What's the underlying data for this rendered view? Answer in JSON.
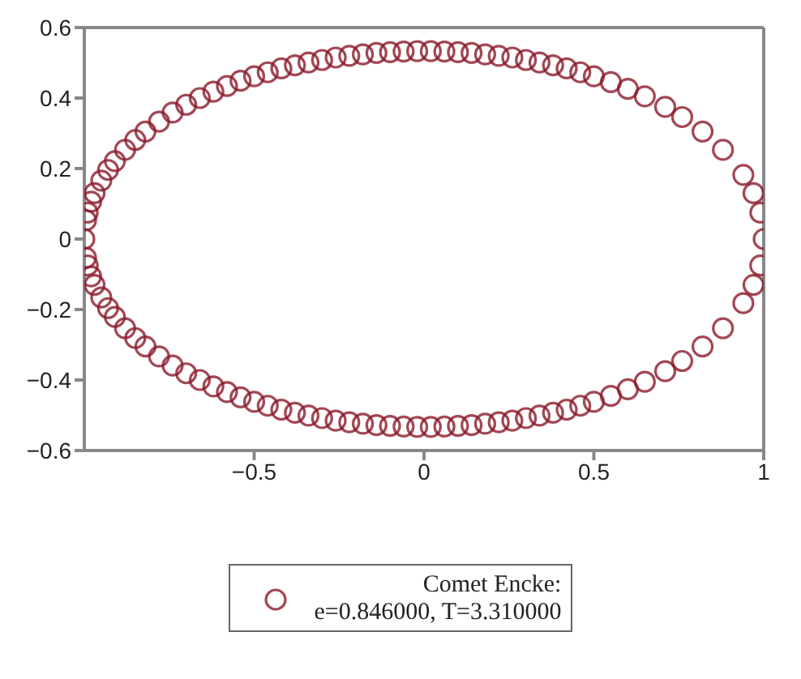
{
  "chart_data": {
    "type": "scatter",
    "x": [
      1,
      0.99,
      0.97,
      0.94,
      0.88,
      0.82,
      0.76,
      0.71,
      0.65,
      0.6,
      0.55,
      0.5,
      0.46,
      0.42,
      0.38,
      0.34,
      0.3,
      0.26,
      0.22,
      0.18,
      0.14,
      0.1,
      0.06,
      0.02,
      -0.02,
      -0.06,
      -0.1,
      -0.14,
      -0.18,
      -0.22,
      -0.26,
      -0.3,
      -0.34,
      -0.38,
      -0.42,
      -0.46,
      -0.5,
      -0.54,
      -0.58,
      -0.62,
      -0.66,
      -0.7,
      -0.74,
      -0.78,
      -0.82,
      -0.85,
      -0.88,
      -0.91,
      -0.93,
      -0.95,
      -0.97,
      -0.98,
      -0.99,
      -0.995,
      -1,
      -0.995,
      -0.99,
      -0.98,
      -0.97,
      -0.95,
      -0.93,
      -0.91,
      -0.88,
      -0.85,
      -0.82,
      -0.78,
      -0.74,
      -0.7,
      -0.66,
      -0.62,
      -0.58,
      -0.54,
      -0.5,
      -0.46,
      -0.42,
      -0.38,
      -0.34,
      -0.3,
      -0.26,
      -0.22,
      -0.18,
      -0.14,
      -0.1,
      -0.06,
      -0.02,
      0.02,
      0.06,
      0.1,
      0.14,
      0.18,
      0.22,
      0.26,
      0.3,
      0.34,
      0.38,
      0.42,
      0.46,
      0.5,
      0.55,
      0.6,
      0.65,
      0.71,
      0.76,
      0.82,
      0.88,
      0.94,
      0.97,
      0.99
    ],
    "series": [
      {
        "name": "Comet Encke:\ne=0.846000, T=3.310000",
        "color": "#8b1a2b",
        "values": [
          0,
          0.075,
          0.13,
          0.182,
          0.253,
          0.305,
          0.346,
          0.375,
          0.405,
          0.426,
          0.445,
          0.462,
          0.473,
          0.484,
          0.493,
          0.501,
          0.508,
          0.515,
          0.52,
          0.524,
          0.528,
          0.53,
          0.532,
          0.533,
          0.533,
          0.532,
          0.53,
          0.528,
          0.524,
          0.52,
          0.515,
          0.508,
          0.501,
          0.493,
          0.484,
          0.473,
          0.462,
          0.449,
          0.434,
          0.418,
          0.4,
          0.381,
          0.359,
          0.333,
          0.305,
          0.281,
          0.253,
          0.221,
          0.196,
          0.166,
          0.13,
          0.106,
          0.075,
          0.053,
          0,
          -0.053,
          -0.075,
          -0.106,
          -0.13,
          -0.166,
          -0.196,
          -0.221,
          -0.253,
          -0.281,
          -0.305,
          -0.333,
          -0.359,
          -0.381,
          -0.4,
          -0.418,
          -0.434,
          -0.449,
          -0.462,
          -0.473,
          -0.484,
          -0.493,
          -0.501,
          -0.508,
          -0.515,
          -0.52,
          -0.524,
          -0.528,
          -0.53,
          -0.532,
          -0.533,
          -0.533,
          -0.532,
          -0.53,
          -0.528,
          -0.524,
          -0.52,
          -0.515,
          -0.508,
          -0.501,
          -0.493,
          -0.484,
          -0.473,
          -0.462,
          -0.445,
          -0.426,
          -0.405,
          -0.375,
          -0.346,
          -0.305,
          -0.253,
          -0.182,
          -0.13,
          -0.075
        ]
      }
    ],
    "xlim": [
      -1,
      1
    ],
    "xticks": [
      -0.5,
      0,
      0.5,
      1
    ],
    "ylim": [
      -0.6,
      0.6
    ],
    "yticks": [
      -0.6,
      -0.4,
      -0.2,
      0,
      0.2,
      0.4,
      0.6
    ],
    "marker": "circle",
    "legend": "bottom",
    "grid": false
  }
}
